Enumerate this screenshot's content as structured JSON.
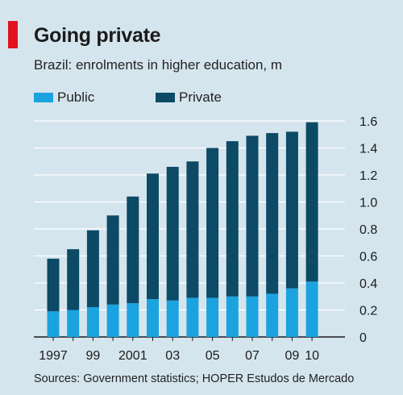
{
  "colors": {
    "public": "#1aa3df",
    "private": "#0c4a66",
    "grid": "#ffffff",
    "accent": "#e2131c"
  },
  "chart_data": {
    "type": "bar",
    "stacked": true,
    "title": "Going private",
    "subtitle": "Brazil: enrolments in higher education, m",
    "source": "Sources: Government statistics; HOPER Estudos de Mercado",
    "legend": [
      {
        "name": "Public",
        "color": "#1aa3df"
      },
      {
        "name": "Private",
        "color": "#0c4a66"
      }
    ],
    "categories": [
      "1997",
      "1998",
      "1999",
      "2000",
      "2001",
      "2002",
      "2003",
      "2004",
      "2005",
      "2006",
      "2007",
      "2008",
      "2009",
      "2010"
    ],
    "x_tick_labels": [
      "1997",
      "",
      "99",
      "",
      "2001",
      "",
      "03",
      "",
      "05",
      "",
      "07",
      "",
      "09",
      "10"
    ],
    "series": [
      {
        "name": "Public",
        "values": [
          0.19,
          0.2,
          0.22,
          0.24,
          0.25,
          0.28,
          0.27,
          0.29,
          0.29,
          0.3,
          0.3,
          0.32,
          0.36,
          0.41
        ]
      },
      {
        "name": "Private",
        "values": [
          0.39,
          0.45,
          0.57,
          0.66,
          0.79,
          0.93,
          0.99,
          1.01,
          1.11,
          1.15,
          1.19,
          1.19,
          1.16,
          1.18
        ]
      }
    ],
    "totals": [
      0.58,
      0.65,
      0.79,
      0.9,
      1.04,
      1.21,
      1.26,
      1.3,
      1.4,
      1.45,
      1.49,
      1.51,
      1.52,
      1.59
    ],
    "y_ticks": [
      0,
      0.2,
      0.4,
      0.6,
      0.8,
      1.0,
      1.2,
      1.4,
      1.6
    ],
    "y_tick_labels": [
      "0",
      "0.2",
      "0.4",
      "0.6",
      "0.8",
      "1.0",
      "1.2",
      "1.4",
      "1.6"
    ],
    "ylim": [
      0,
      1.6
    ],
    "y_axis_position": "right",
    "grid": true
  }
}
